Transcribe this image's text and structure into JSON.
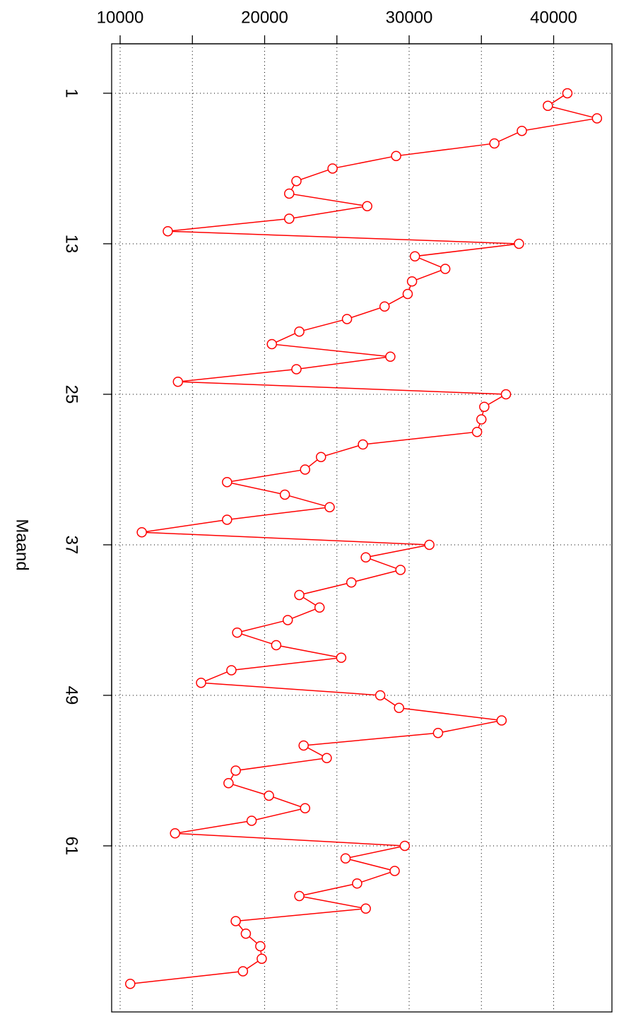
{
  "chart_data": {
    "type": "line",
    "x_label": "Maand",
    "x": [
      1,
      2,
      3,
      4,
      5,
      6,
      7,
      8,
      9,
      10,
      11,
      12,
      13,
      14,
      15,
      16,
      17,
      18,
      19,
      20,
      21,
      22,
      23,
      24,
      25,
      26,
      27,
      28,
      29,
      30,
      31,
      32,
      33,
      34,
      35,
      36,
      37,
      38,
      39,
      40,
      41,
      42,
      43,
      44,
      45,
      46,
      47,
      48,
      49,
      50,
      51,
      52,
      53,
      54,
      55,
      56,
      57,
      58,
      59,
      60,
      61,
      62,
      63,
      64,
      65,
      66,
      67,
      68,
      69,
      70,
      71,
      72
    ],
    "values": [
      40950,
      39600,
      43000,
      37800,
      35900,
      29100,
      24700,
      22200,
      21700,
      27100,
      21700,
      13300,
      37600,
      30400,
      32500,
      30200,
      29900,
      28300,
      25700,
      22400,
      20500,
      28700,
      22200,
      14000,
      36700,
      35200,
      35000,
      34700,
      26800,
      23900,
      22800,
      17400,
      21400,
      24500,
      17400,
      11500,
      31400,
      27000,
      29400,
      26000,
      22400,
      23800,
      21600,
      18100,
      20800,
      25300,
      17700,
      15600,
      28000,
      29300,
      36400,
      32000,
      22700,
      24300,
      18000,
      17500,
      20300,
      22800,
      19100,
      13800,
      29700,
      25600,
      29000,
      26400,
      22400,
      27000,
      18000,
      18700,
      19700,
      19800,
      18500,
      10700
    ],
    "color": "#ff0000",
    "markers": true,
    "grid": true,
    "xlim": [
      -2.94,
      74.24
    ],
    "xticks": [
      1,
      13,
      25,
      37,
      49,
      61
    ],
    "ylim": [
      9413,
      44034
    ],
    "yticks": [
      10000,
      {
        "value": 15000,
        "label": null
      },
      20000,
      {
        "value": 25000,
        "label": null
      },
      30000,
      {
        "value": 35000,
        "label": null
      },
      40000
    ]
  }
}
